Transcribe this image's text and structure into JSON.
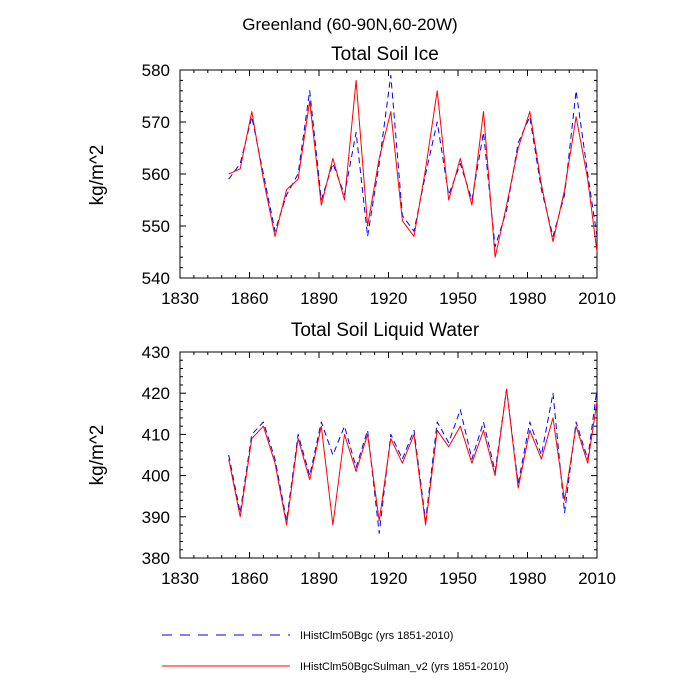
{
  "page": {
    "main_title": "Greenland (60-90N,60-20W)"
  },
  "legend": {
    "entries": [
      {
        "label": "IHistClm50Bgc (yrs 1851-2010)",
        "color": "#0000ff",
        "style": "dashed"
      },
      {
        "label": "IHistClm50BgcSulman_v2 (yrs 1851-2010)",
        "color": "#ff0000",
        "style": "solid"
      }
    ]
  },
  "chart_data": [
    {
      "type": "line",
      "title": "Total Soil Ice",
      "xlabel": "",
      "ylabel": "kg/m^2",
      "xlim": [
        1830,
        2010
      ],
      "ylim": [
        540,
        580
      ],
      "xticks": [
        1830,
        1860,
        1890,
        1920,
        1950,
        1980,
        2010
      ],
      "yticks": [
        540,
        550,
        560,
        570,
        580
      ],
      "grid": false,
      "x": [
        1851,
        1856,
        1861,
        1866,
        1871,
        1876,
        1881,
        1886,
        1891,
        1896,
        1901,
        1906,
        1911,
        1916,
        1921,
        1926,
        1931,
        1936,
        1941,
        1946,
        1951,
        1956,
        1961,
        1966,
        1971,
        1976,
        1981,
        1986,
        1991,
        1996,
        2001,
        2006,
        2010
      ],
      "series": [
        {
          "name": "IHistClm50Bgc (yrs 1851-2010)",
          "color": "#0000ff",
          "style": "dashed",
          "values": [
            559,
            562,
            571,
            560,
            549,
            556,
            560,
            576,
            555,
            562,
            556,
            568,
            548,
            562,
            579,
            552,
            549,
            560,
            570,
            556,
            562,
            555,
            568,
            546,
            553,
            566,
            571,
            557,
            548,
            556,
            576,
            560,
            548
          ]
        },
        {
          "name": "IHistClm50BgcSulman_v2 (yrs 1851-2010)",
          "color": "#ff0000",
          "style": "solid",
          "values": [
            560,
            561,
            572,
            559,
            548,
            557,
            559,
            574,
            554,
            563,
            555,
            578,
            550,
            563,
            572,
            551,
            548,
            561,
            576,
            555,
            563,
            554,
            572,
            544,
            554,
            565,
            572,
            558,
            547,
            557,
            571,
            559,
            545
          ]
        }
      ]
    },
    {
      "type": "line",
      "title": "Total Soil Liquid Water",
      "xlabel": "",
      "ylabel": "kg/m^2",
      "xlim": [
        1830,
        2010
      ],
      "ylim": [
        380,
        430
      ],
      "xticks": [
        1830,
        1860,
        1890,
        1920,
        1950,
        1980,
        2010
      ],
      "yticks": [
        380,
        390,
        400,
        410,
        420,
        430
      ],
      "grid": false,
      "x": [
        1851,
        1856,
        1861,
        1866,
        1871,
        1876,
        1881,
        1886,
        1891,
        1896,
        1901,
        1906,
        1911,
        1916,
        1921,
        1926,
        1931,
        1936,
        1941,
        1946,
        1951,
        1956,
        1961,
        1966,
        1971,
        1976,
        1981,
        1986,
        1991,
        1996,
        2001,
        2006,
        2010
      ],
      "series": [
        {
          "name": "IHistClm50Bgc (yrs 1851-2010)",
          "color": "#0000ff",
          "style": "dashed",
          "values": [
            405,
            391,
            410,
            413,
            404,
            389,
            410,
            400,
            413,
            405,
            412,
            402,
            411,
            386,
            410,
            404,
            411,
            389,
            413,
            408,
            416,
            404,
            413,
            401,
            421,
            398,
            413,
            405,
            420,
            391,
            413,
            404,
            421
          ]
        },
        {
          "name": "IHistClm50BgcSulman_v2 (yrs 1851-2010)",
          "color": "#ff0000",
          "style": "solid",
          "values": [
            404,
            390,
            409,
            412,
            403,
            388,
            409,
            399,
            412,
            388,
            410,
            401,
            410,
            389,
            409,
            403,
            410,
            388,
            411,
            407,
            412,
            403,
            411,
            400,
            421,
            397,
            411,
            404,
            414,
            394,
            412,
            403,
            418
          ]
        }
      ]
    }
  ]
}
